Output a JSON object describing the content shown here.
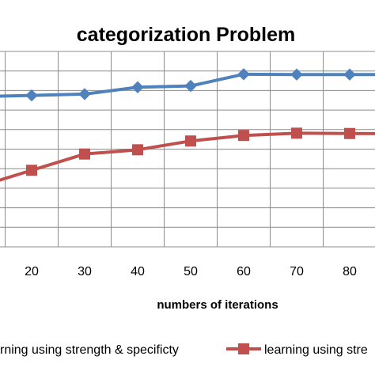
{
  "chart_data": {
    "type": "line",
    "title": "categorization Problem",
    "xlabel": "numbers of iterations",
    "ylabel": "",
    "categories": [
      "20",
      "30",
      "40",
      "50",
      "60",
      "70",
      "80"
    ],
    "x": [
      20,
      30,
      40,
      50,
      60,
      70,
      80
    ],
    "grid": true,
    "legend_position": "bottom",
    "series": [
      {
        "name": "learning using strength & specificty",
        "legend_text": "rning using strength & specificty",
        "color": "#4F81BD",
        "marker": "diamond",
        "values": [
          86.5,
          86.9,
          89.0,
          89.4,
          93.0,
          92.9,
          92.9
        ]
      },
      {
        "name": "learning using strength",
        "legend_text": "learning using stre",
        "color": "#C0504D",
        "marker": "square",
        "values": [
          63.5,
          68.5,
          69.8,
          72.5,
          74.2,
          74.9,
          74.8
        ]
      }
    ]
  }
}
